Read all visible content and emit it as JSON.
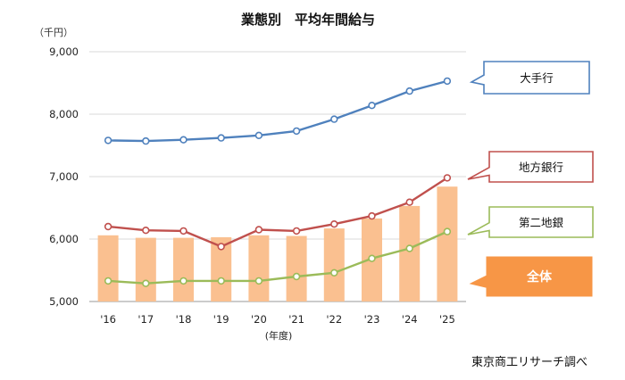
{
  "chart_data": {
    "type": "line",
    "title": "業態別　平均年間給与",
    "unit_label": "（千円）",
    "xlabel": "(年度)",
    "ylabel": "",
    "categories": [
      "'16",
      "'17",
      "'18",
      "'19",
      "'20",
      "'21",
      "'22",
      "'23",
      "'24",
      "'25"
    ],
    "ylim": [
      5000,
      9000
    ],
    "yticks": [
      5000,
      6000,
      7000,
      8000,
      9000
    ],
    "ytick_labels": [
      "5,000",
      "6,000",
      "7,000",
      "8,000",
      "9,000"
    ],
    "grid": true,
    "source": "東京商工リサーチ調べ",
    "series": [
      {
        "name": "大手行",
        "kind": "line",
        "color": "#4f81bd",
        "values": [
          7580,
          7570,
          7590,
          7620,
          7660,
          7730,
          7920,
          8140,
          8370,
          8530
        ]
      },
      {
        "name": "地方銀行",
        "kind": "line",
        "color": "#c0504d",
        "values": [
          6200,
          6140,
          6130,
          5880,
          6150,
          6130,
          6240,
          6370,
          6590,
          6980
        ]
      },
      {
        "name": "第二地銀",
        "kind": "line",
        "color": "#9bbb59",
        "values": [
          5330,
          5290,
          5330,
          5330,
          5330,
          5400,
          5460,
          5690,
          5850,
          6120
        ]
      },
      {
        "name": "全体",
        "kind": "bar",
        "color": "#fac090",
        "values": [
          6060,
          6020,
          6020,
          6030,
          6060,
          6050,
          6170,
          6330,
          6530,
          6840
        ]
      }
    ]
  }
}
